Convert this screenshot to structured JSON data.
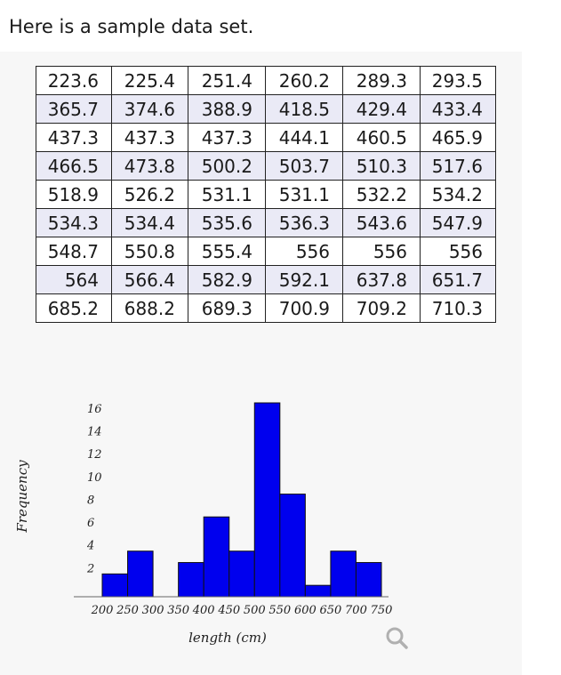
{
  "intro_text": "Here is a sample data set.",
  "table": {
    "rows": [
      [
        "223.6",
        "225.4",
        "251.4",
        "260.2",
        "289.3",
        "293.5"
      ],
      [
        "365.7",
        "374.6",
        "388.9",
        "418.5",
        "429.4",
        "433.4"
      ],
      [
        "437.3",
        "437.3",
        "437.3",
        "444.1",
        "460.5",
        "465.9"
      ],
      [
        "466.5",
        "473.8",
        "500.2",
        "503.7",
        "510.3",
        "517.6"
      ],
      [
        "518.9",
        "526.2",
        "531.1",
        "531.1",
        "532.2",
        "534.2"
      ],
      [
        "534.3",
        "534.4",
        "535.6",
        "536.3",
        "543.6",
        "547.9"
      ],
      [
        "548.7",
        "550.8",
        "555.4",
        "556",
        "556",
        "556"
      ],
      [
        "564",
        "566.4",
        "582.9",
        "592.1",
        "637.8",
        "651.7"
      ],
      [
        "685.2",
        "688.2",
        "689.3",
        "700.9",
        "709.2",
        "710.3"
      ]
    ]
  },
  "chart_data": {
    "type": "bar",
    "xlabel": "length (cm)",
    "ylabel": "Frequency",
    "x_ticks": [
      200,
      250,
      300,
      350,
      400,
      450,
      500,
      550,
      600,
      650,
      700,
      750
    ],
    "y_ticks": [
      2,
      4,
      6,
      8,
      10,
      12,
      14,
      16
    ],
    "bins": [
      {
        "from": 200,
        "to": 250,
        "value": 2
      },
      {
        "from": 250,
        "to": 300,
        "value": 4
      },
      {
        "from": 300,
        "to": 350,
        "value": 0
      },
      {
        "from": 350,
        "to": 400,
        "value": 3
      },
      {
        "from": 400,
        "to": 450,
        "value": 7
      },
      {
        "from": 450,
        "to": 500,
        "value": 4
      },
      {
        "from": 500,
        "to": 550,
        "value": 17
      },
      {
        "from": 550,
        "to": 600,
        "value": 9
      },
      {
        "from": 600,
        "to": 650,
        "value": 1
      },
      {
        "from": 650,
        "to": 700,
        "value": 4
      },
      {
        "from": 700,
        "to": 750,
        "value": 3
      }
    ],
    "bar_color": "#0000ee",
    "ylim": [
      0,
      17
    ]
  },
  "icons": {
    "zoom": "magnifier-icon",
    "zoom_color": "#b0b0b0"
  }
}
